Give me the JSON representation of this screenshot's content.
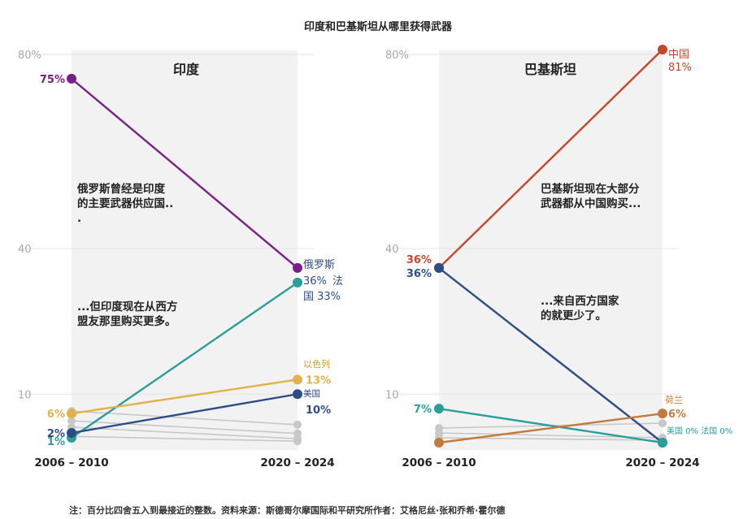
{
  "title": "印度和巴基斯坦从哪里获得武器",
  "note": "注：百分比四舍五入到最接近的整数。资料来源：斯德哥尔摩国际和平研究所作者：艾格尼丝·张和乔希·霍尔德",
  "colors": {
    "russia": "#7a1f87",
    "france": "#2a9f9a",
    "israel": "#e0b24a",
    "usa": "#2e4d87",
    "china": "#c7462a",
    "netherlands": "#c47a3c",
    "gray": "#c8c8c8",
    "panel": "#f2f2f2"
  },
  "chart_data": [
    {
      "type": "line",
      "title": "印度",
      "x": [
        "2006 – 2010",
        "2020 – 2024"
      ],
      "ylim": [
        0,
        80
      ],
      "yticks": [
        "80%",
        "40",
        "10"
      ],
      "series": [
        {
          "name": "俄罗斯",
          "color": "russia",
          "values": [
            75,
            36
          ]
        },
        {
          "name": "法国",
          "color": "france",
          "values": [
            1,
            33
          ]
        },
        {
          "name": "以色列",
          "color": "israel",
          "values": [
            6,
            13
          ]
        },
        {
          "name": "美国",
          "color": "usa",
          "values": [
            2,
            10
          ]
        },
        {
          "name": "其他1",
          "color": "gray",
          "values": [
            6.5,
            3.7
          ]
        },
        {
          "name": "其他2",
          "color": "gray",
          "values": [
            4.5,
            1.9
          ]
        },
        {
          "name": "其他3",
          "color": "gray",
          "values": [
            3.2,
            0.8
          ]
        },
        {
          "name": "其他4",
          "color": "gray",
          "values": [
            1.3,
            0.3
          ]
        }
      ],
      "labels": {
        "start_russia": "75%",
        "start_israel": "6%",
        "start_usa": "2%",
        "start_france": "1%",
        "end_russia": "俄罗斯",
        "end_russia_pct": "36%",
        "end_france": "法",
        "end_france_line2": "国 33%",
        "end_israel": "以色列",
        "end_israel_pct": "13%",
        "end_usa": "美国",
        "end_usa_pct": "10%"
      },
      "annotations": [
        [
          "俄罗斯曾经是印度",
          "的主要武器供应国..",
          "."
        ],
        [
          "...但印度现在从西方",
          "盟友那里购买更多。"
        ]
      ]
    },
    {
      "type": "line",
      "title": "巴基斯坦",
      "x": [
        "2006 – 2010",
        "2020 – 2024"
      ],
      "ylim": [
        0,
        80
      ],
      "yticks": [
        "80%",
        "40",
        "10"
      ],
      "series": [
        {
          "name": "中国",
          "color": "china",
          "values": [
            36,
            81
          ]
        },
        {
          "name": "美国",
          "color": "usa",
          "values": [
            36,
            0
          ]
        },
        {
          "name": "法国",
          "color": "france",
          "values": [
            7,
            0
          ]
        },
        {
          "name": "荷兰",
          "color": "netherlands",
          "values": [
            0,
            6
          ]
        },
        {
          "name": "其他1",
          "color": "gray",
          "values": [
            3,
            4
          ]
        },
        {
          "name": "其他2",
          "color": "gray",
          "values": [
            2,
            1
          ]
        },
        {
          "name": "其他3",
          "color": "gray",
          "values": [
            1,
            0.5
          ]
        }
      ],
      "labels": {
        "start_china": "36%",
        "start_usa": "36%",
        "start_france": "7%",
        "end_china": "中国",
        "end_china_pct": "81%",
        "end_netherlands": "荷兰",
        "end_netherlands_pct": "6%",
        "end_usa_france": "美国 0% 法国 0%"
      },
      "annotations": [
        [
          "巴基斯坦现在大部分",
          "武器都从中国购买..."
        ],
        [
          "...来自西方国家",
          "的就更少了。"
        ]
      ]
    }
  ]
}
